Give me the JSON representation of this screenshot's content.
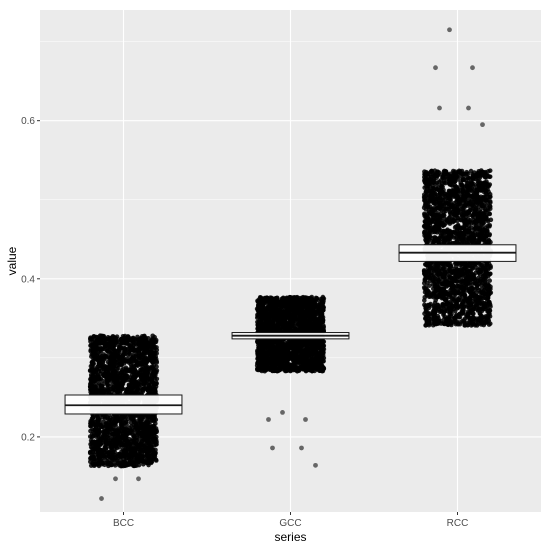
{
  "chart_data": {
    "type": "box",
    "xlabel": "series",
    "ylabel": "value",
    "categories": [
      "BCC",
      "GCC",
      "RCC"
    ],
    "ylim": [
      0.105,
      0.74
    ],
    "y_ticks": [
      0.2,
      0.4,
      0.6
    ],
    "y_tick_labels": [
      "0.2",
      "0.4",
      "0.6"
    ],
    "grid": true,
    "overlay": "jittered points",
    "series": [
      {
        "category": "BCC",
        "jitter_range": [
          0.163,
          0.328
        ],
        "box": {
          "q1": 0.229,
          "median": 0.24,
          "q3": 0.253
        },
        "outliers": [
          0.147,
          0.147,
          0.122
        ]
      },
      {
        "category": "GCC",
        "jitter_range": [
          0.283,
          0.377
        ],
        "box": {
          "q1": 0.324,
          "median": 0.328,
          "q3": 0.332
        },
        "outliers": [
          0.231,
          0.222,
          0.222,
          0.186,
          0.186,
          0.164
        ]
      },
      {
        "category": "RCC",
        "jitter_range": [
          0.341,
          0.537
        ],
        "box": {
          "q1": 0.422,
          "median": 0.433,
          "q3": 0.443
        },
        "outliers": [
          0.715,
          0.667,
          0.667,
          0.616,
          0.616,
          0.595
        ]
      }
    ],
    "colors": {
      "panel": "#ebebeb",
      "grid_major": "#ffffff",
      "points": "#000000",
      "box_fill": "#ffffff",
      "box_stroke": "#1a1a1a"
    }
  }
}
